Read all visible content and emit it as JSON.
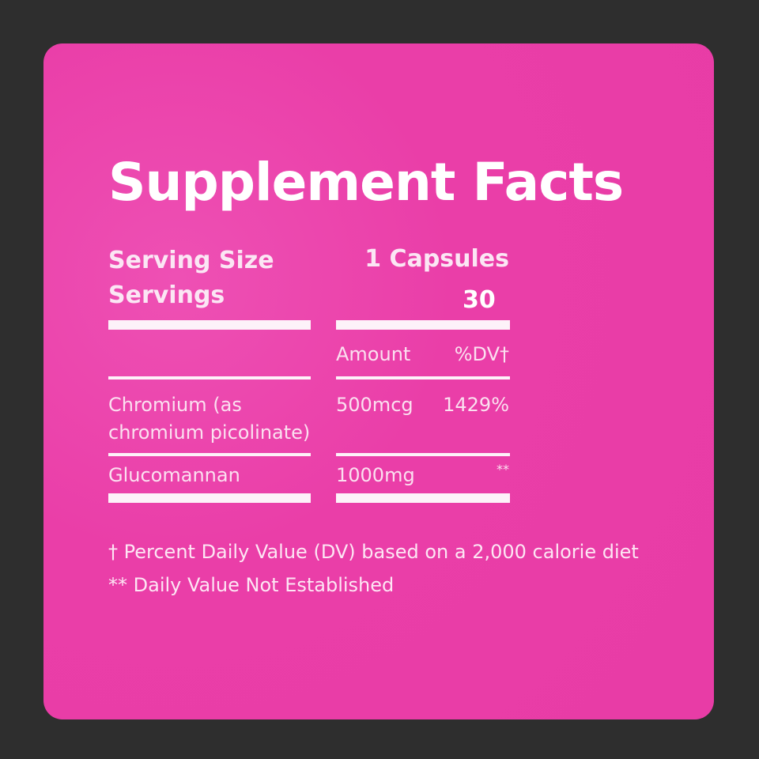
{
  "title": "Supplement Facts",
  "serving_size_label": "Serving Size",
  "serving_size_value": "1 Capsules",
  "servings_label": "Servings",
  "servings_value": "30",
  "columns": {
    "amount": "Amount",
    "dv": "%DV†"
  },
  "rows": [
    {
      "name_line1": "Chromium (as",
      "name_line2": "chromium picolinate)",
      "amount": "500mcg",
      "dv": "1429%"
    },
    {
      "name_line1": "Glucomannan",
      "amount": "1000mg",
      "dv": "**"
    }
  ],
  "footnotes": [
    "† Percent Daily Value (DV) based on a 2,000 calorie diet",
    "** Daily Value Not Established"
  ],
  "colors": {
    "background": "#2e2e2e",
    "card": "#ea3ea8",
    "text": "#ffffff"
  }
}
